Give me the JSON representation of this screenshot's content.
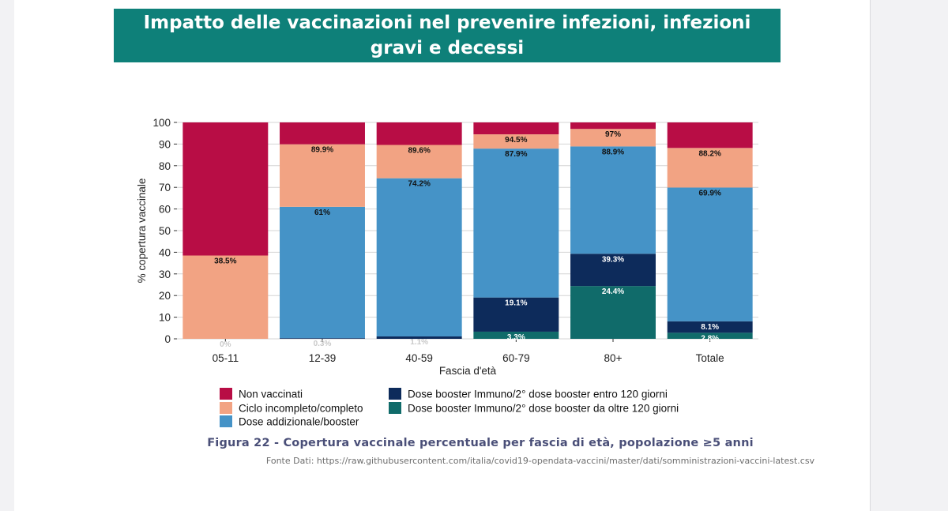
{
  "banner": {
    "title": "Impatto delle vaccinazioni nel prevenire infezioni, infezioni gravi e decessi"
  },
  "figure": {
    "caption": "Figura 22 - Copertura vaccinale percentuale per fascia di età, popolazione ≥5 anni",
    "source": "Fonte Dati: https://raw.githubusercontent.com/italia/covid19-opendata-vaccini/master/dati/somministrazioni-vaccini-latest.csv"
  },
  "chart_data": {
    "type": "bar",
    "stacked": true,
    "xlabel": "Fascia d'età",
    "ylabel": "% copertura vaccinale",
    "ylim": [
      0,
      100
    ],
    "yticks": [
      0,
      10,
      20,
      30,
      40,
      50,
      60,
      70,
      80,
      90,
      100
    ],
    "grid": true,
    "legend_position": "bottom",
    "categories": [
      "05-11",
      "12-39",
      "40-59",
      "60-79",
      "80+",
      "Totale"
    ],
    "series": [
      {
        "name": "Dose booster Immuno/2° dose booster da oltre 120 giorni",
        "color": "#106b6a",
        "cumulative": [
          0,
          0,
          0,
          3.3,
          24.4,
          2.8
        ],
        "labels": [
          "",
          "",
          "",
          "3.3%",
          "24.4%",
          "2.8%"
        ]
      },
      {
        "name": "Dose booster Immuno/2° dose booster entro 120 giorni",
        "color": "#0d2b5b",
        "cumulative": [
          0,
          0.3,
          1.1,
          19.1,
          39.3,
          8.1
        ],
        "labels": [
          "0%",
          "0.3%",
          "1.1%",
          "19.1%",
          "39.3%",
          "8.1%"
        ]
      },
      {
        "name": "Dose addizionale/booster",
        "color": "#4593c7",
        "cumulative": [
          0,
          61,
          74.2,
          87.9,
          88.9,
          69.9
        ],
        "labels": [
          "",
          "61%",
          "74.2%",
          "87.9%",
          "88.9%",
          "69.9%"
        ]
      },
      {
        "name": "Ciclo incompleto/completo",
        "color": "#f2a383",
        "cumulative": [
          38.5,
          89.9,
          89.6,
          94.5,
          97,
          88.2
        ],
        "labels": [
          "38.5%",
          "89.9%",
          "89.6%",
          "94.5%",
          "97%",
          "88.2%"
        ]
      },
      {
        "name": "Non vaccinati",
        "color": "#b80d45",
        "cumulative": [
          100,
          100,
          100,
          100,
          100,
          100
        ],
        "labels": [
          "",
          "",
          "",
          "",
          "",
          ""
        ]
      }
    ],
    "legend_order": [
      4,
      3,
      2,
      1,
      0
    ]
  },
  "colors": {
    "banner": "#0e8079",
    "caption": "#4a4f78"
  }
}
